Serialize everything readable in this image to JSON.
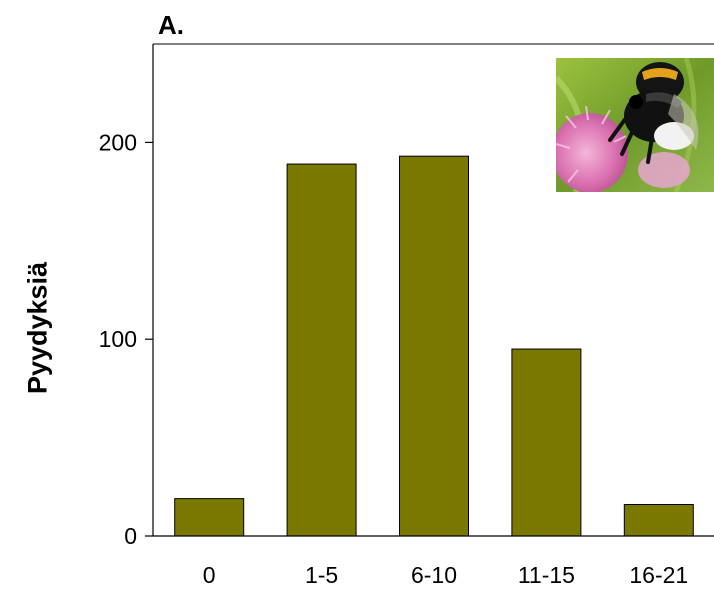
{
  "panel_label": "A.",
  "chart_data": {
    "type": "bar",
    "title": "",
    "xlabel": "",
    "ylabel": "Pyydyksiä",
    "categories": [
      "0",
      "1-5",
      "6-10",
      "11-15",
      "16-21"
    ],
    "values": [
      19,
      189,
      193,
      95,
      16
    ],
    "ylim": [
      0,
      250
    ],
    "yticks": [
      0,
      100,
      200
    ],
    "bar_color": "#7b7800",
    "grid": false,
    "legend": "none"
  },
  "inset_photo": {
    "icon": "bumblebee-on-clover-icon"
  }
}
